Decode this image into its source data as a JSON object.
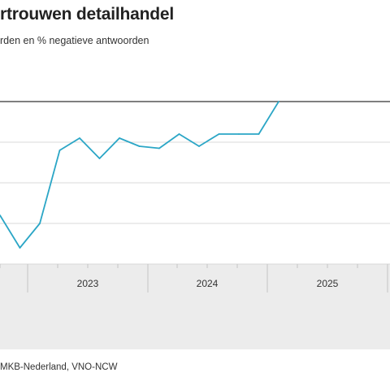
{
  "header": {
    "title": "rtrouwen detailhandel",
    "subtitle": "rden en % negatieve antwoorden"
  },
  "source": "MKB-Nederland, VNO-NCW",
  "colors": {
    "line": "#2ba6c6",
    "zero_line": "#555555",
    "grid": "#d9d9d9",
    "axis_band": "#ececec",
    "axis_divider": "#c4c4c4"
  },
  "chart_data": {
    "type": "line",
    "title": "rtrouwen detailhandel",
    "subtitle": "rden en % negatieve antwoorden",
    "x_ticks": [
      "2023",
      "2024",
      "2025"
    ],
    "grid": true,
    "series": [
      {
        "values": [
          -28,
          -36,
          -30,
          -12,
          -9,
          -14,
          -9,
          -11,
          -11.5,
          -8,
          -11,
          -8,
          -8,
          -8,
          0
        ]
      }
    ]
  }
}
